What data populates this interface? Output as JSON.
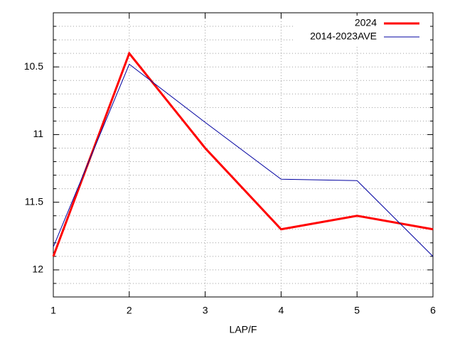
{
  "chart_data": {
    "type": "line",
    "xlabel": "LAP/F",
    "x": [
      1,
      2,
      3,
      4,
      5,
      6
    ],
    "xlim": [
      1,
      6
    ],
    "xticks": [
      1,
      2,
      3,
      4,
      5,
      6
    ],
    "ylim": [
      12.2,
      10.1
    ],
    "yticks": [
      10.5,
      11,
      11.5,
      12
    ],
    "yminorticks": [
      10.2,
      10.3,
      10.4,
      10.6,
      10.7,
      10.8,
      10.9,
      11.1,
      11.2,
      11.3,
      11.4,
      11.6,
      11.7,
      11.8,
      11.9,
      12.1
    ],
    "grid": true,
    "legend": "top-right",
    "series": [
      {
        "name": "2024",
        "color": "#ff0000",
        "values": [
          11.9,
          10.4,
          11.1,
          11.7,
          11.6,
          11.7
        ]
      },
      {
        "name": "2014-2023AVE",
        "color": "#0000a0",
        "values": [
          11.83,
          10.48,
          10.91,
          11.33,
          11.34,
          11.9
        ]
      }
    ]
  }
}
